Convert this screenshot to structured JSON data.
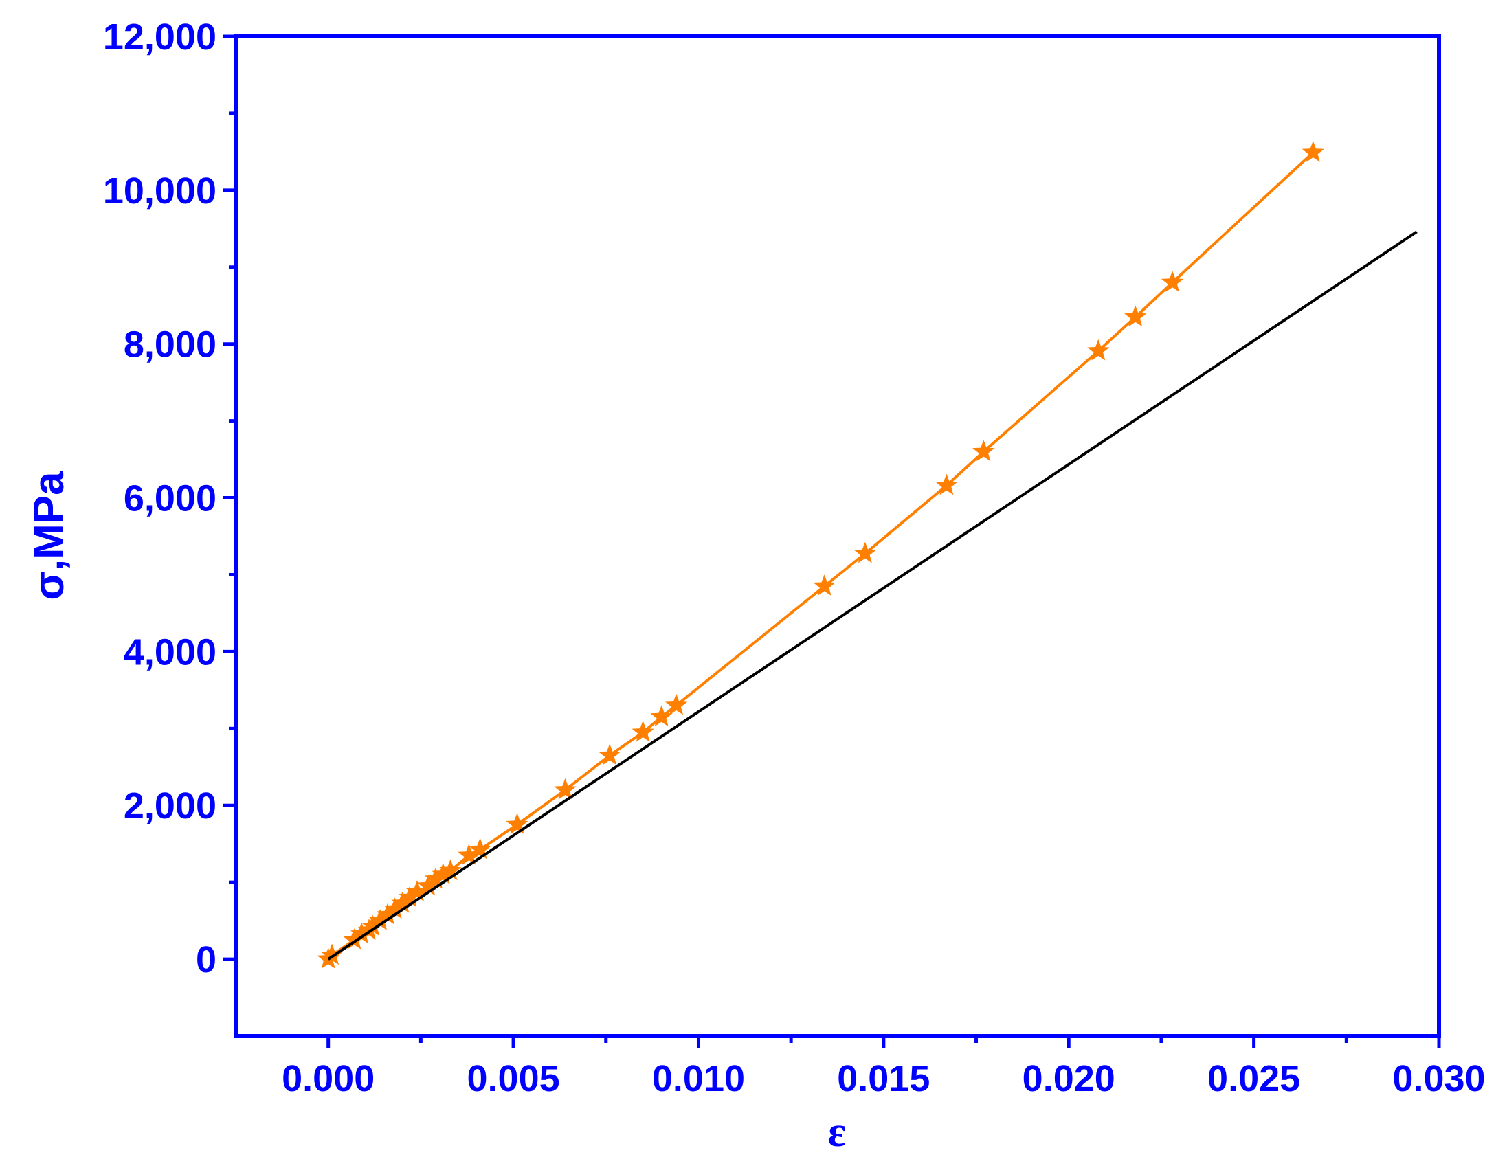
{
  "chart_data": {
    "type": "line",
    "xlabel": "ε",
    "ylabel": "σ,MPa",
    "xlim": [
      -0.0025,
      0.03
    ],
    "ylim": [
      -1000,
      12000
    ],
    "xticks": [
      {
        "value": 0,
        "label": "0.000"
      },
      {
        "value": 0.005,
        "label": "0.005"
      },
      {
        "value": 0.01,
        "label": "0.010"
      },
      {
        "value": 0.015,
        "label": "0.015"
      },
      {
        "value": 0.02,
        "label": "0.020"
      },
      {
        "value": 0.025,
        "label": "0.025"
      },
      {
        "value": 0.03,
        "label": "0.030"
      }
    ],
    "yticks": [
      0,
      {
        "value": 2000,
        "label": "2,000"
      },
      {
        "value": 4000,
        "label": "4,000"
      },
      {
        "value": 6000,
        "label": "6,000"
      },
      {
        "value": 8000,
        "label": "8,000"
      },
      {
        "value": 10000,
        "label": "10,000"
      },
      {
        "value": 12000,
        "label": "12,000"
      }
    ],
    "xminorticks": [
      0.0025,
      0.0075,
      0.0125,
      0.0175,
      0.0225,
      0.0275
    ],
    "yminorticks": [
      1000,
      3000,
      5000,
      7000,
      9000,
      11000
    ],
    "axis_color": "#0000ff",
    "series": [
      {
        "color": "#ff8000",
        "marker": "star",
        "x": [
          0,
          0.0001,
          0.0007,
          0.0009,
          0.0011,
          0.0012,
          0.0014,
          0.0016,
          0.0018,
          0.002,
          0.0022,
          0.0024,
          0.0027,
          0.0029,
          0.0031,
          0.0033,
          0.0038,
          0.0041,
          0.0051,
          0.0064,
          0.0076,
          0.0085,
          0.009,
          0.0094,
          0.0134,
          0.0145,
          0.0167,
          0.0177,
          0.0208,
          0.0218,
          0.0228,
          0.0266
        ],
        "values": [
          0,
          50,
          250,
          325,
          375,
          425,
          500,
          575,
          650,
          725,
          800,
          875,
          950,
          1040,
          1100,
          1150,
          1350,
          1425,
          1750,
          2200,
          2650,
          2950,
          3150,
          3300,
          4850,
          5275,
          6160,
          6600,
          7910,
          8350,
          8800,
          10490
        ]
      },
      {
        "color": "#000000",
        "marker": "none",
        "x": [
          0,
          0.0294
        ],
        "values": [
          0,
          9460
        ]
      }
    ]
  }
}
